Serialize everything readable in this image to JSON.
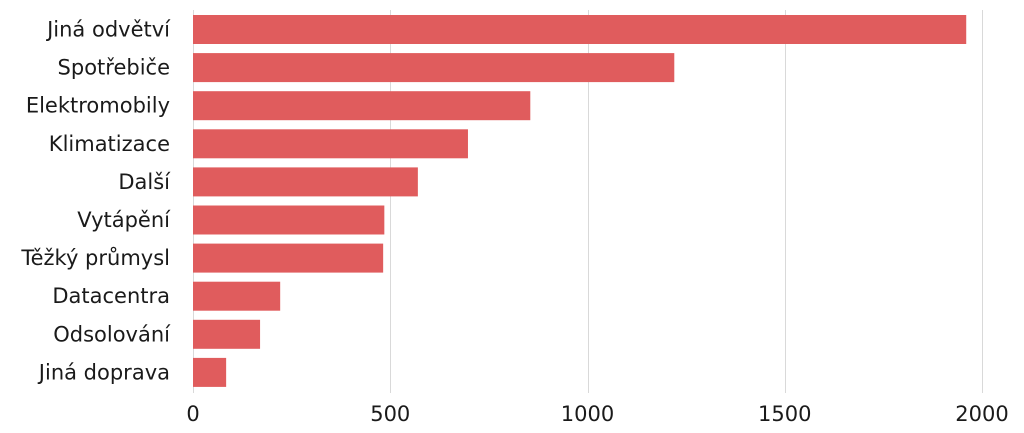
{
  "chart_data": {
    "type": "bar",
    "orientation": "horizontal",
    "categories": [
      "Jiná odvětví",
      "Spotřebiče",
      "Elektromobily",
      "Klimatizace",
      "Další",
      "Vytápění",
      "Těžký průmysl",
      "Datacentra",
      "Odsolování",
      "Jiná doprava"
    ],
    "values": [
      1960,
      1220,
      855,
      697,
      570,
      485,
      482,
      221,
      170,
      84
    ],
    "xlim": [
      0,
      2000
    ],
    "xticks": [
      0,
      500,
      1000,
      1500,
      2000
    ],
    "title": "",
    "xlabel": "",
    "ylabel": "",
    "grid": "vertical",
    "legend": "none",
    "bar_color": "#e05c5d",
    "grid_color": "#d9d9d9",
    "text_color": "#1a1a1a"
  }
}
